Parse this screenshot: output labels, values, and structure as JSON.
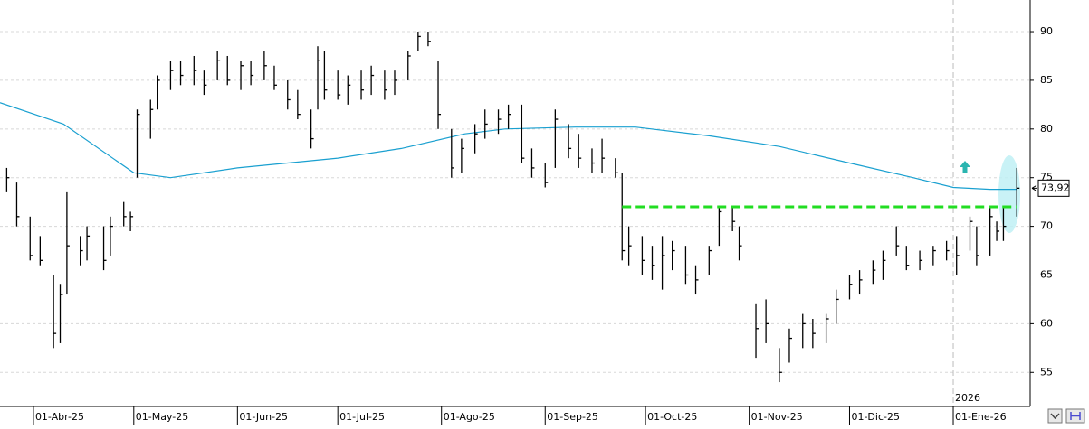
{
  "chart_data": {
    "type": "hlc",
    "xlim": [
      "2025-03-22",
      "2026-01-24"
    ],
    "ylim": [
      51.5,
      93.25
    ],
    "yticks": [
      55,
      60,
      65,
      70,
      75,
      80,
      85,
      90
    ],
    "xticks": [
      {
        "value": "2025-04-01",
        "label": "01-Abr-25"
      },
      {
        "value": "2025-05-01",
        "label": "01-May-25"
      },
      {
        "value": "2025-06-01",
        "label": "01-Jun-25"
      },
      {
        "value": "2025-07-01",
        "label": "01-Jul-25"
      },
      {
        "value": "2025-08-01",
        "label": "01-Ago-25"
      },
      {
        "value": "2025-09-01",
        "label": "01-Sep-25"
      },
      {
        "value": "2025-10-01",
        "label": "01-Oct-25"
      },
      {
        "value": "2025-11-01",
        "label": "01-Nov-25"
      },
      {
        "value": "2025-12-01",
        "label": "01-Dic-25"
      },
      {
        "value": "2026-01-01",
        "label": "01-Ene-26"
      }
    ],
    "year_marker": {
      "value": "2026-01-01",
      "label": "2026"
    },
    "grid": true,
    "bar_color": "#000000",
    "x": [
      "2025-03-24",
      "2025-03-27",
      "2025-03-31",
      "2025-04-03",
      "2025-04-07",
      "2025-04-09",
      "2025-04-11",
      "2025-04-15",
      "2025-04-17",
      "2025-04-22",
      "2025-04-24",
      "2025-04-28",
      "2025-04-30",
      "2025-05-02",
      "2025-05-06",
      "2025-05-08",
      "2025-05-12",
      "2025-05-15",
      "2025-05-19",
      "2025-05-22",
      "2025-05-26",
      "2025-05-29",
      "2025-06-02",
      "2025-06-05",
      "2025-06-09",
      "2025-06-12",
      "2025-06-16",
      "2025-06-19",
      "2025-06-23",
      "2025-06-25",
      "2025-06-27",
      "2025-07-01",
      "2025-07-04",
      "2025-07-08",
      "2025-07-11",
      "2025-07-15",
      "2025-07-18",
      "2025-07-22",
      "2025-07-25",
      "2025-07-28",
      "2025-07-31",
      "2025-08-04",
      "2025-08-07",
      "2025-08-11",
      "2025-08-14",
      "2025-08-18",
      "2025-08-21",
      "2025-08-25",
      "2025-08-28",
      "2025-09-01",
      "2025-09-04",
      "2025-09-08",
      "2025-09-11",
      "2025-09-15",
      "2025-09-18",
      "2025-09-22",
      "2025-09-24",
      "2025-09-26",
      "2025-09-30",
      "2025-10-03",
      "2025-10-06",
      "2025-10-09",
      "2025-10-13",
      "2025-10-16",
      "2025-10-20",
      "2025-10-23",
      "2025-10-27",
      "2025-10-29",
      "2025-11-03",
      "2025-11-06",
      "2025-11-10",
      "2025-11-13",
      "2025-11-17",
      "2025-11-20",
      "2025-11-24",
      "2025-11-27",
      "2025-12-01",
      "2025-12-04",
      "2025-12-08",
      "2025-12-11",
      "2025-12-15",
      "2025-12-18",
      "2025-12-22",
      "2025-12-26",
      "2025-12-30",
      "2026-01-02",
      "2026-01-06",
      "2026-01-08",
      "2026-01-12",
      "2026-01-14",
      "2026-01-16",
      "2026-01-20"
    ],
    "high": [
      76,
      74.5,
      71,
      69,
      65,
      64,
      73.5,
      69,
      70,
      70,
      71,
      72.5,
      71.5,
      82,
      83,
      85.5,
      87,
      87,
      87.5,
      86,
      88,
      87.5,
      87,
      87,
      88,
      86.5,
      85,
      84,
      82,
      88.5,
      88,
      86,
      85.5,
      86,
      86.5,
      86,
      86,
      88,
      90,
      90,
      87,
      80,
      79,
      80.5,
      82,
      82,
      82.5,
      82.5,
      78,
      76.5,
      82,
      80.5,
      79.5,
      78,
      79,
      77,
      75.5,
      70,
      69,
      68,
      69,
      68.5,
      68,
      66,
      68,
      72,
      72,
      70,
      62,
      62.5,
      57.5,
      59.5,
      61,
      60.5,
      61,
      63.5,
      65,
      65.5,
      66.5,
      67.5,
      70,
      68,
      67.5,
      68,
      68.5,
      69,
      71,
      70,
      72,
      70.5,
      72,
      76
    ],
    "low": [
      73.5,
      70,
      66.5,
      66,
      57.5,
      58,
      63,
      66,
      66.5,
      65.5,
      67,
      70,
      69.5,
      75,
      79,
      82,
      84,
      84.5,
      84.5,
      83.5,
      85,
      84.5,
      84,
      84.5,
      85,
      84,
      82,
      81,
      78,
      82,
      83,
      83,
      82.5,
      83,
      83.5,
      83,
      83.5,
      85,
      88,
      88.5,
      80,
      75,
      75.5,
      77.5,
      79,
      79.5,
      80,
      76.5,
      75,
      74,
      76,
      77,
      76,
      75.5,
      75.5,
      75,
      66.5,
      66,
      65,
      64.5,
      63.5,
      65.5,
      64,
      63,
      65,
      68,
      69.5,
      66.5,
      56.5,
      58,
      54,
      56,
      57.5,
      57.5,
      58,
      60,
      62.5,
      63,
      64,
      64.5,
      67,
      65.5,
      65.5,
      66,
      66.5,
      65,
      67.5,
      66,
      67,
      68.5,
      68.5,
      71
    ],
    "close": [
      75,
      71,
      67,
      66.5,
      59,
      63,
      68,
      67.5,
      69,
      66.5,
      70,
      71,
      71,
      81.5,
      82,
      85,
      86,
      85.5,
      86,
      84.5,
      87,
      85,
      86.5,
      85.5,
      86.5,
      84.5,
      83,
      81.5,
      79,
      87,
      84,
      83.5,
      84.5,
      84,
      85.5,
      84,
      85,
      87.5,
      89.5,
      89,
      81.5,
      76,
      78,
      79.5,
      80.5,
      81,
      81.5,
      77,
      76,
      74.5,
      81,
      78,
      77,
      76.5,
      77,
      75.5,
      67.5,
      68,
      66.5,
      66,
      67,
      67.5,
      65,
      64.5,
      67.5,
      71.5,
      70.5,
      68,
      59.5,
      60,
      55,
      58.5,
      60,
      59,
      60.5,
      62.5,
      64,
      64.5,
      65.5,
      66.5,
      68,
      66,
      66.5,
      67.5,
      67.5,
      67,
      70.5,
      67,
      71,
      69.5,
      70,
      73.92
    ],
    "last_label": "73,92",
    "moving_average": {
      "color": "#1aa0d0",
      "x": [
        "2025-03-22",
        "2025-04-10",
        "2025-05-01",
        "2025-05-12",
        "2025-06-01",
        "2025-07-01",
        "2025-07-20",
        "2025-08-08",
        "2025-08-20",
        "2025-09-10",
        "2025-09-28",
        "2025-10-20",
        "2025-11-10",
        "2025-12-01",
        "2025-12-20",
        "2026-01-01",
        "2026-01-12",
        "2026-01-20"
      ],
      "values": [
        82.7,
        80.5,
        75.5,
        75,
        76,
        77,
        78,
        79.5,
        80,
        80.2,
        80.2,
        79.3,
        78.2,
        76.5,
        75,
        74,
        73.8,
        73.8
      ]
    },
    "hline": {
      "value": 72,
      "from": "2025-09-24",
      "to": "2026-01-20",
      "color": "#22dd22"
    }
  }
}
